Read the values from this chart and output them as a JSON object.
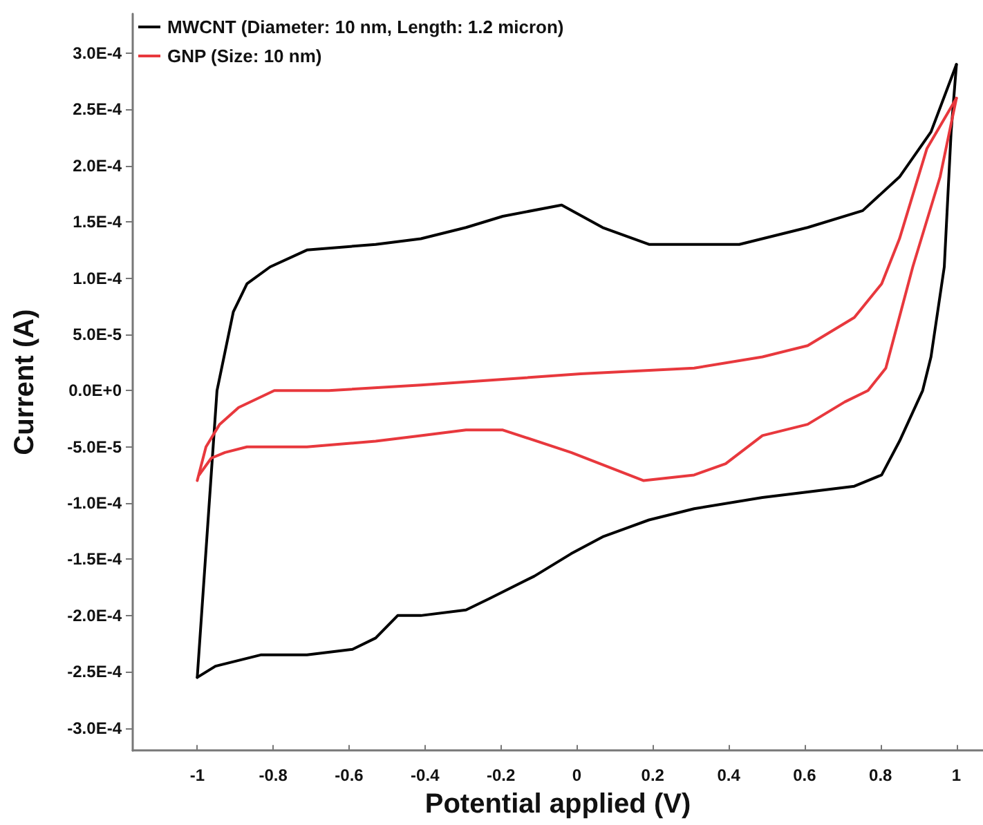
{
  "chart_data": {
    "type": "line",
    "xlabel": "Potential applied (V)",
    "ylabel": "Current (A)",
    "xlim": [
      -1.17,
      1.07
    ],
    "xticks": [
      -1,
      -0.8,
      -0.6,
      -0.4,
      -0.2,
      0,
      0.2,
      0.4,
      0.6,
      0.8,
      1
    ],
    "ylim": [
      -0.00032,
      0.000335
    ],
    "yticks": [
      {
        "value": -0.0003,
        "label": "-3.0E-4"
      },
      {
        "value": -0.00025,
        "label": "-2.5E-4"
      },
      {
        "value": -0.0002,
        "label": "-2.0E-4"
      },
      {
        "value": -0.00015,
        "label": "-1.5E-4"
      },
      {
        "value": -0.0001,
        "label": "-1.0E-4"
      },
      {
        "value": -5e-05,
        "label": "-5.0E-5"
      },
      {
        "value": 0,
        "label": "0.0E+0"
      },
      {
        "value": 5e-05,
        "label": "5.0E-5"
      },
      {
        "value": 0.0001,
        "label": "1.0E-4"
      },
      {
        "value": 0.00015,
        "label": "1.5E-4"
      },
      {
        "value": 0.0002,
        "label": "2.0E-4"
      },
      {
        "value": 0.00025,
        "label": "2.5E-4"
      },
      {
        "value": 0.0003,
        "label": "3.0E-4"
      }
    ],
    "grid": false,
    "legend": "top left",
    "marker": "none",
    "line_style": "solid",
    "series": [
      {
        "name": "MWCNT (Diameter: 10 nm, Length: 1.2 micron)",
        "color": "#000000",
        "x": [
          -1,
          -0.948,
          -0.905,
          -0.869,
          -0.808,
          -0.711,
          -0.53,
          -0.411,
          -0.292,
          -0.195,
          -0.04,
          0.068,
          0.19,
          0.284,
          0.428,
          0.608,
          0.753,
          0.85,
          0.933,
          1
        ],
        "values": [
          -0.000255,
          0,
          7e-05,
          9.5e-05,
          0.00011,
          0.000125,
          0.00013,
          0.000135,
          0.000145,
          0.000155,
          0.000165,
          0.000145,
          0.00013,
          0.00013,
          0.00013,
          0.000145,
          0.00016,
          0.00019,
          0.00023,
          0.00029
        ]
      },
      {
        "color": "#000000",
        "x": [
          1,
          0.986,
          0.968,
          0.933,
          0.911,
          0.85,
          0.803,
          0.731,
          0.489,
          0.309,
          0.19,
          0.068,
          -0.015,
          -0.112,
          -0.231,
          -0.292,
          -0.411,
          -0.472,
          -0.53,
          -0.591,
          -0.711,
          -0.833,
          -0.952,
          -1
        ],
        "values": [
          0.00029,
          0.00023,
          0.00011,
          3e-05,
          0,
          -4.5e-05,
          -7.5e-05,
          -8.5e-05,
          -9.5e-05,
          -0.000105,
          -0.000115,
          -0.00013,
          -0.000145,
          -0.000165,
          -0.000185,
          -0.000195,
          -0.0002,
          -0.0002,
          -0.00022,
          -0.00023,
          -0.000235,
          -0.000235,
          -0.000245,
          -0.000255
        ]
      },
      {
        "name": "GNP (Size: 10 nm)",
        "color": "#e8383d",
        "x": [
          -1,
          -0.977,
          -0.941,
          -0.891,
          -0.797,
          -0.653,
          -0.411,
          -0.195,
          0.01,
          0.309,
          0.489,
          0.608,
          0.731,
          0.803,
          0.85,
          0.922,
          1
        ],
        "values": [
          -8e-05,
          -5e-05,
          -3e-05,
          -1.5e-05,
          0,
          0,
          5e-06,
          1e-05,
          1.5e-05,
          2e-05,
          3e-05,
          4e-05,
          6.5e-05,
          9.5e-05,
          0.000135,
          0.000215,
          0.00026
        ]
      },
      {
        "color": "#e8383d",
        "x": [
          1,
          0.957,
          0.885,
          0.814,
          0.767,
          0.706,
          0.608,
          0.489,
          0.392,
          0.309,
          0.176,
          -0.015,
          -0.195,
          -0.292,
          -0.411,
          -0.53,
          -0.711,
          -0.869,
          -0.927,
          -0.963,
          -0.995
        ],
        "values": [
          0.00026,
          0.00019,
          0.00011,
          2e-05,
          0,
          -1e-05,
          -3e-05,
          -4e-05,
          -6.5e-05,
          -7.5e-05,
          -8e-05,
          -5.5e-05,
          -3.5e-05,
          -3.5e-05,
          -4e-05,
          -4.5e-05,
          -5e-05,
          -5e-05,
          -5.5e-05,
          -6e-05,
          -7.5e-05
        ]
      }
    ]
  }
}
